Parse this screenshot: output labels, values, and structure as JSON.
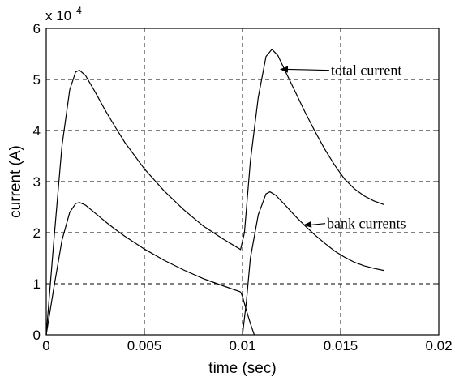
{
  "chart_data": {
    "type": "line",
    "title": "",
    "xlabel": "time (sec)",
    "ylabel": "current (A)",
    "y_exponent_label": "x 10",
    "y_exponent_power": "4",
    "xlim": [
      0,
      0.02
    ],
    "ylim": [
      0,
      60000
    ],
    "x_ticks": [
      0,
      0.005,
      0.01,
      0.015,
      0.02
    ],
    "x_tick_labels": [
      "0",
      "0.005",
      "0.01",
      "0.015",
      "0.02"
    ],
    "y_ticks": [
      0,
      10000,
      20000,
      30000,
      40000,
      50000,
      60000
    ],
    "y_tick_labels": [
      "0",
      "1",
      "2",
      "3",
      "4",
      "5",
      "6"
    ],
    "grid": true,
    "series": [
      {
        "values": [
          [
            0,
            0
          ],
          [
            0.0004,
            19000
          ],
          [
            0.0008,
            37000
          ],
          [
            0.0012,
            48000
          ],
          [
            0.0015,
            51500
          ],
          [
            0.0017,
            51800
          ],
          [
            0.002,
            50800
          ],
          [
            0.0025,
            47500
          ],
          [
            0.003,
            44000
          ],
          [
            0.0035,
            40800
          ],
          [
            0.004,
            37700
          ],
          [
            0.005,
            32500
          ],
          [
            0.006,
            28200
          ],
          [
            0.007,
            24500
          ],
          [
            0.008,
            21300
          ],
          [
            0.009,
            18800
          ],
          [
            0.0099,
            16700
          ],
          [
            0.0101,
            20000
          ],
          [
            0.0104,
            34000
          ],
          [
            0.0108,
            46500
          ],
          [
            0.0112,
            54500
          ],
          [
            0.0115,
            55900
          ],
          [
            0.0118,
            54700
          ],
          [
            0.0122,
            51500
          ],
          [
            0.0127,
            47500
          ],
          [
            0.0132,
            43500
          ],
          [
            0.0137,
            39800
          ],
          [
            0.0142,
            36300
          ],
          [
            0.0147,
            33200
          ],
          [
            0.0152,
            30500
          ],
          [
            0.0157,
            28600
          ],
          [
            0.0162,
            27200
          ],
          [
            0.0167,
            26200
          ],
          [
            0.0172,
            25500
          ]
        ]
      },
      {
        "values": [
          [
            0,
            0
          ],
          [
            0.0004,
            9500
          ],
          [
            0.0008,
            18500
          ],
          [
            0.0012,
            24000
          ],
          [
            0.0015,
            25700
          ],
          [
            0.0017,
            25900
          ],
          [
            0.002,
            25400
          ],
          [
            0.0025,
            23800
          ],
          [
            0.003,
            22200
          ],
          [
            0.0035,
            20700
          ],
          [
            0.004,
            19300
          ],
          [
            0.005,
            16800
          ],
          [
            0.006,
            14600
          ],
          [
            0.007,
            12700
          ],
          [
            0.008,
            11000
          ],
          [
            0.009,
            9600
          ],
          [
            0.0099,
            8400
          ]
        ]
      },
      {
        "values": [
          [
            0.0099,
            8400
          ],
          [
            0.01,
            7500
          ],
          [
            0.0102,
            4800
          ],
          [
            0.0104,
            2200
          ],
          [
            0.0106,
            0
          ]
        ]
      },
      {
        "values": [
          [
            0.01,
            0
          ],
          [
            0.0102,
            6500
          ],
          [
            0.0104,
            15000
          ],
          [
            0.0108,
            23500
          ],
          [
            0.0112,
            27600
          ],
          [
            0.0114,
            28000
          ],
          [
            0.0117,
            27300
          ],
          [
            0.0122,
            25300
          ],
          [
            0.0127,
            23200
          ],
          [
            0.0132,
            21300
          ],
          [
            0.0137,
            19500
          ],
          [
            0.0142,
            17900
          ],
          [
            0.0147,
            16400
          ],
          [
            0.0152,
            15200
          ],
          [
            0.0157,
            14200
          ],
          [
            0.0162,
            13500
          ],
          [
            0.0167,
            13000
          ],
          [
            0.0172,
            12600
          ]
        ]
      }
    ],
    "annotations": [
      {
        "text": "total current",
        "text_x": 0.0145,
        "text_y": 51800,
        "arrow_to": [
          0.0119,
          52000
        ]
      },
      {
        "text": "bank currents",
        "text_x": 0.0143,
        "text_y": 21800,
        "arrow_to": [
          0.0131,
          21500
        ]
      }
    ]
  }
}
